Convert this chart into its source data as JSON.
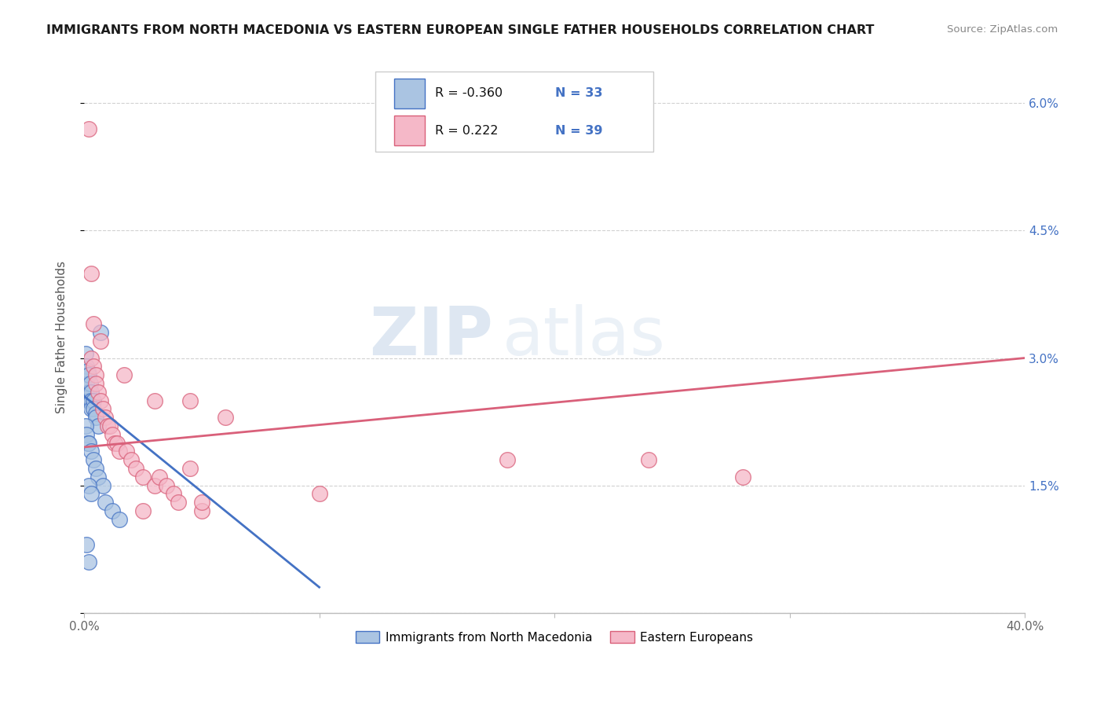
{
  "title": "IMMIGRANTS FROM NORTH MACEDONIA VS EASTERN EUROPEAN SINGLE FATHER HOUSEHOLDS CORRELATION CHART",
  "source": "Source: ZipAtlas.com",
  "ylabel": "Single Father Households",
  "xlim": [
    0.0,
    0.4
  ],
  "ylim": [
    0.0,
    0.065
  ],
  "xticks": [
    0.0,
    0.1,
    0.2,
    0.3,
    0.4
  ],
  "xtick_labels": [
    "0.0%",
    "",
    "",
    "",
    "40.0%"
  ],
  "yticks_right": [
    0.0,
    0.015,
    0.03,
    0.045,
    0.06
  ],
  "ytick_labels_right": [
    "",
    "1.5%",
    "3.0%",
    "4.5%",
    "6.0%"
  ],
  "legend_series": [
    {
      "label": "Immigrants from North Macedonia",
      "R": "-0.360",
      "N": "33",
      "color": "#aac4e2",
      "line_color": "#4472c4"
    },
    {
      "label": "Eastern Europeans",
      "R": "0.222",
      "N": "39",
      "color": "#f5b8c8",
      "line_color": "#d9607a"
    }
  ],
  "watermark_zip": "ZIP",
  "watermark_atlas": "atlas",
  "background_color": "#ffffff",
  "grid_color": "#cccccc",
  "blue_dots": [
    [
      0.0005,
      0.0305
    ],
    [
      0.001,
      0.029
    ],
    [
      0.001,
      0.027
    ],
    [
      0.0015,
      0.0285
    ],
    [
      0.002,
      0.028
    ],
    [
      0.002,
      0.026
    ],
    [
      0.002,
      0.025
    ],
    [
      0.0025,
      0.027
    ],
    [
      0.003,
      0.026
    ],
    [
      0.003,
      0.025
    ],
    [
      0.003,
      0.024
    ],
    [
      0.004,
      0.025
    ],
    [
      0.004,
      0.024
    ],
    [
      0.005,
      0.0235
    ],
    [
      0.005,
      0.023
    ],
    [
      0.006,
      0.022
    ],
    [
      0.007,
      0.033
    ],
    [
      0.0005,
      0.022
    ],
    [
      0.001,
      0.021
    ],
    [
      0.0015,
      0.02
    ],
    [
      0.002,
      0.02
    ],
    [
      0.003,
      0.019
    ],
    [
      0.004,
      0.018
    ],
    [
      0.005,
      0.017
    ],
    [
      0.006,
      0.016
    ],
    [
      0.008,
      0.015
    ],
    [
      0.009,
      0.013
    ],
    [
      0.012,
      0.012
    ],
    [
      0.015,
      0.011
    ],
    [
      0.002,
      0.015
    ],
    [
      0.003,
      0.014
    ],
    [
      0.001,
      0.008
    ],
    [
      0.002,
      0.006
    ]
  ],
  "pink_dots": [
    [
      0.002,
      0.057
    ],
    [
      0.003,
      0.04
    ],
    [
      0.003,
      0.03
    ],
    [
      0.004,
      0.029
    ],
    [
      0.005,
      0.028
    ],
    [
      0.005,
      0.027
    ],
    [
      0.006,
      0.026
    ],
    [
      0.007,
      0.025
    ],
    [
      0.008,
      0.024
    ],
    [
      0.009,
      0.023
    ],
    [
      0.01,
      0.022
    ],
    [
      0.011,
      0.022
    ],
    [
      0.012,
      0.021
    ],
    [
      0.013,
      0.02
    ],
    [
      0.014,
      0.02
    ],
    [
      0.015,
      0.019
    ],
    [
      0.018,
      0.019
    ],
    [
      0.02,
      0.018
    ],
    [
      0.022,
      0.017
    ],
    [
      0.025,
      0.016
    ],
    [
      0.03,
      0.015
    ],
    [
      0.032,
      0.016
    ],
    [
      0.035,
      0.015
    ],
    [
      0.038,
      0.014
    ],
    [
      0.04,
      0.013
    ],
    [
      0.045,
      0.017
    ],
    [
      0.05,
      0.012
    ],
    [
      0.004,
      0.034
    ],
    [
      0.007,
      0.032
    ],
    [
      0.017,
      0.028
    ],
    [
      0.03,
      0.025
    ],
    [
      0.045,
      0.025
    ],
    [
      0.06,
      0.023
    ],
    [
      0.18,
      0.018
    ],
    [
      0.24,
      0.018
    ],
    [
      0.025,
      0.012
    ],
    [
      0.05,
      0.013
    ],
    [
      0.1,
      0.014
    ],
    [
      0.28,
      0.016
    ]
  ],
  "blue_line": {
    "x0": 0.0,
    "x1": 0.1,
    "y0": 0.0255,
    "y1": 0.003
  },
  "pink_line": {
    "x0": 0.0,
    "x1": 0.4,
    "y0": 0.0195,
    "y1": 0.03
  }
}
